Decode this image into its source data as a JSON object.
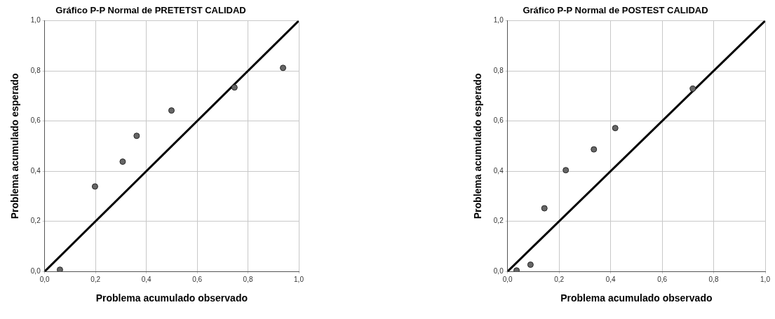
{
  "chart_data": [
    {
      "type": "scatter",
      "title": "Gráfico P-P Normal de PRETETST CALIDAD",
      "xlabel": "Problema acumulado observado",
      "ylabel": "Problema acumulado esperado",
      "xlim": [
        0,
        1
      ],
      "ylim": [
        0,
        1
      ],
      "xticks": [
        {
          "value": 0,
          "label": "0,0"
        },
        {
          "value": 0.2,
          "label": "0,2"
        },
        {
          "value": 0.4,
          "label": "0,4"
        },
        {
          "value": 0.6,
          "label": "0,6"
        },
        {
          "value": 0.8,
          "label": "0,8"
        },
        {
          "value": 1,
          "label": "1,0"
        }
      ],
      "yticks": [
        {
          "value": 0,
          "label": "0,0"
        },
        {
          "value": 0.2,
          "label": "0,2"
        },
        {
          "value": 0.4,
          "label": "0,4"
        },
        {
          "value": 0.6,
          "label": "0,6"
        },
        {
          "value": 0.8,
          "label": "0,8"
        },
        {
          "value": 1,
          "label": "1,0"
        }
      ],
      "grid": true,
      "legend": false,
      "series": [
        {
          "marker": "circle",
          "color": "#666666",
          "x": [
            0.06,
            0.198,
            0.307,
            0.362,
            0.499,
            0.747,
            0.938
          ],
          "values": [
            0.007,
            0.339,
            0.438,
            0.541,
            0.642,
            0.734,
            0.812
          ]
        },
        {
          "type": "line",
          "color": "#000000",
          "line_style": "solid",
          "x": [
            0,
            1
          ],
          "values": [
            0,
            1
          ]
        }
      ]
    },
    {
      "type": "scatter",
      "title": "Gráfico P-P Normal de POSTEST CALIDAD",
      "xlabel": "Problema acumulado observado",
      "ylabel": "Problema acumulado esperado",
      "xlim": [
        0,
        1
      ],
      "ylim": [
        0,
        1
      ],
      "xticks": [
        {
          "value": 0,
          "label": "0,0"
        },
        {
          "value": 0.2,
          "label": "0,2"
        },
        {
          "value": 0.4,
          "label": "0,4"
        },
        {
          "value": 0.6,
          "label": "0,6"
        },
        {
          "value": 0.8,
          "label": "0,8"
        },
        {
          "value": 1,
          "label": "1,0"
        }
      ],
      "yticks": [
        {
          "value": 0,
          "label": "0,0"
        },
        {
          "value": 0.2,
          "label": "0,2"
        },
        {
          "value": 0.4,
          "label": "0,4"
        },
        {
          "value": 0.6,
          "label": "0,6"
        },
        {
          "value": 0.8,
          "label": "0,8"
        },
        {
          "value": 1,
          "label": "1,0"
        }
      ],
      "grid": true,
      "legend": false,
      "series": [
        {
          "marker": "circle",
          "color": "#666666",
          "x": [
            0.035,
            0.089,
            0.143,
            0.226,
            0.335,
            0.418,
            0.719
          ],
          "values": [
            0.004,
            0.027,
            0.252,
            0.404,
            0.487,
            0.572,
            0.729
          ]
        },
        {
          "type": "line",
          "color": "#000000",
          "line_style": "solid",
          "x": [
            0,
            1
          ],
          "values": [
            0,
            1
          ]
        }
      ]
    }
  ]
}
